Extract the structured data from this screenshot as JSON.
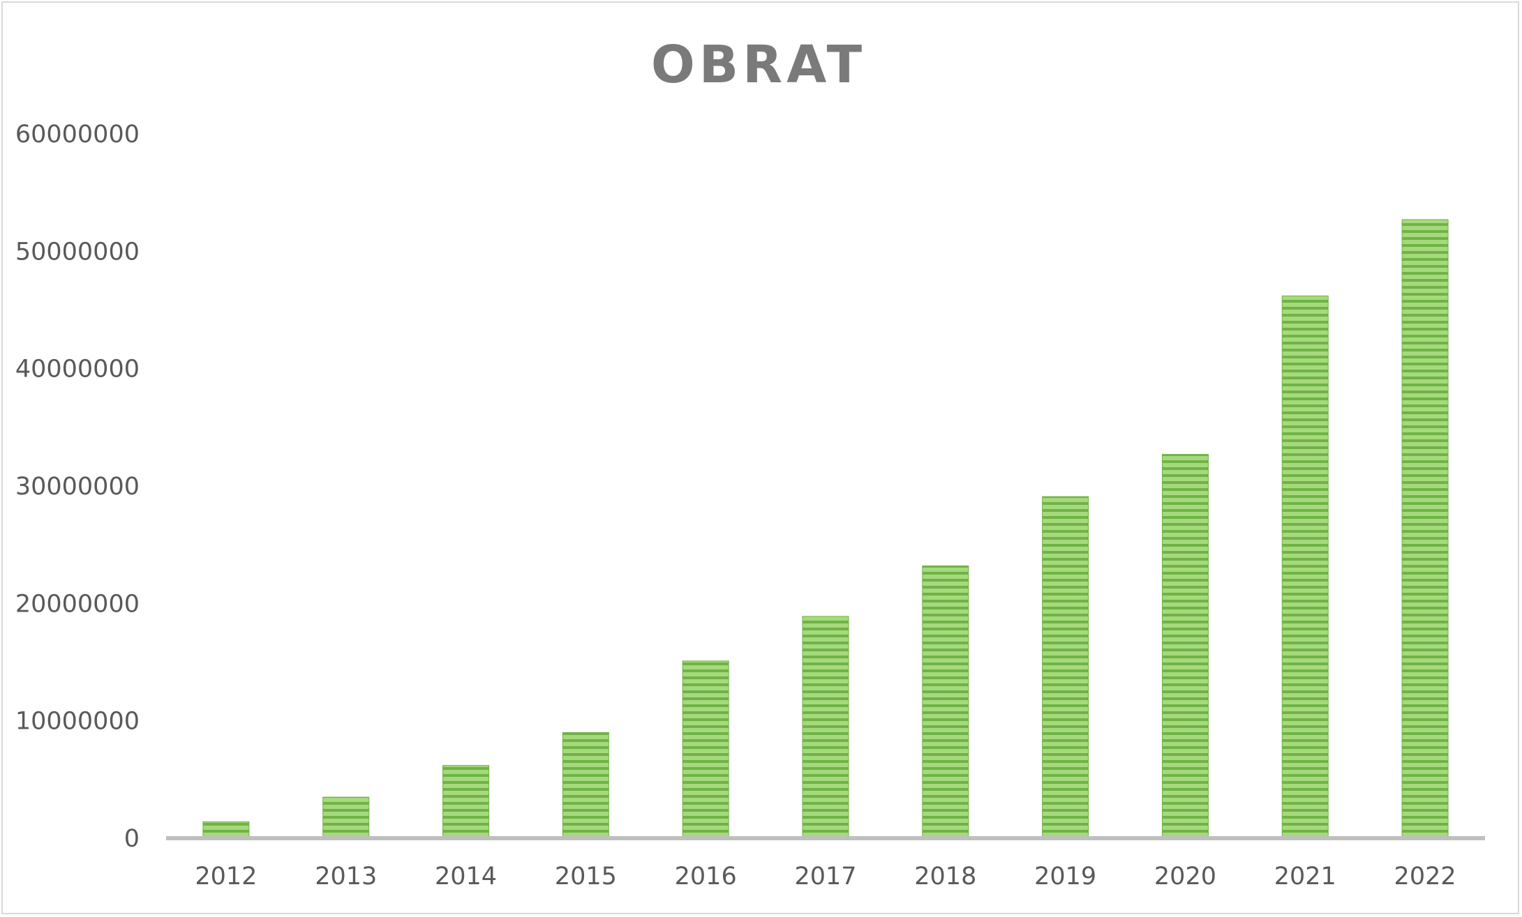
{
  "chart_data": {
    "type": "bar",
    "title": "OBRAT",
    "xlabel": "",
    "ylabel": "",
    "categories": [
      "2012",
      "2013",
      "2014",
      "2015",
      "2016",
      "2017",
      "2018",
      "2019",
      "2020",
      "2021",
      "2022"
    ],
    "series": [
      {
        "values": [
          1400000,
          3500000,
          6200000,
          9000000,
          15100000,
          18900000,
          23200000,
          29100000,
          32700000,
          46200000,
          52700000
        ]
      }
    ],
    "ylim": [
      0,
      60000000
    ],
    "yticks": [
      "0",
      "10000000",
      "20000000",
      "30000000",
      "40000000",
      "50000000",
      "60000000"
    ],
    "grid": false,
    "legend": "none",
    "colors": {
      "bar_fill": "#9bd26f",
      "bar_stripe": "#6fb345",
      "axis": "#bfbfbf",
      "text": "#595959",
      "title": "#7a7a7a"
    }
  }
}
